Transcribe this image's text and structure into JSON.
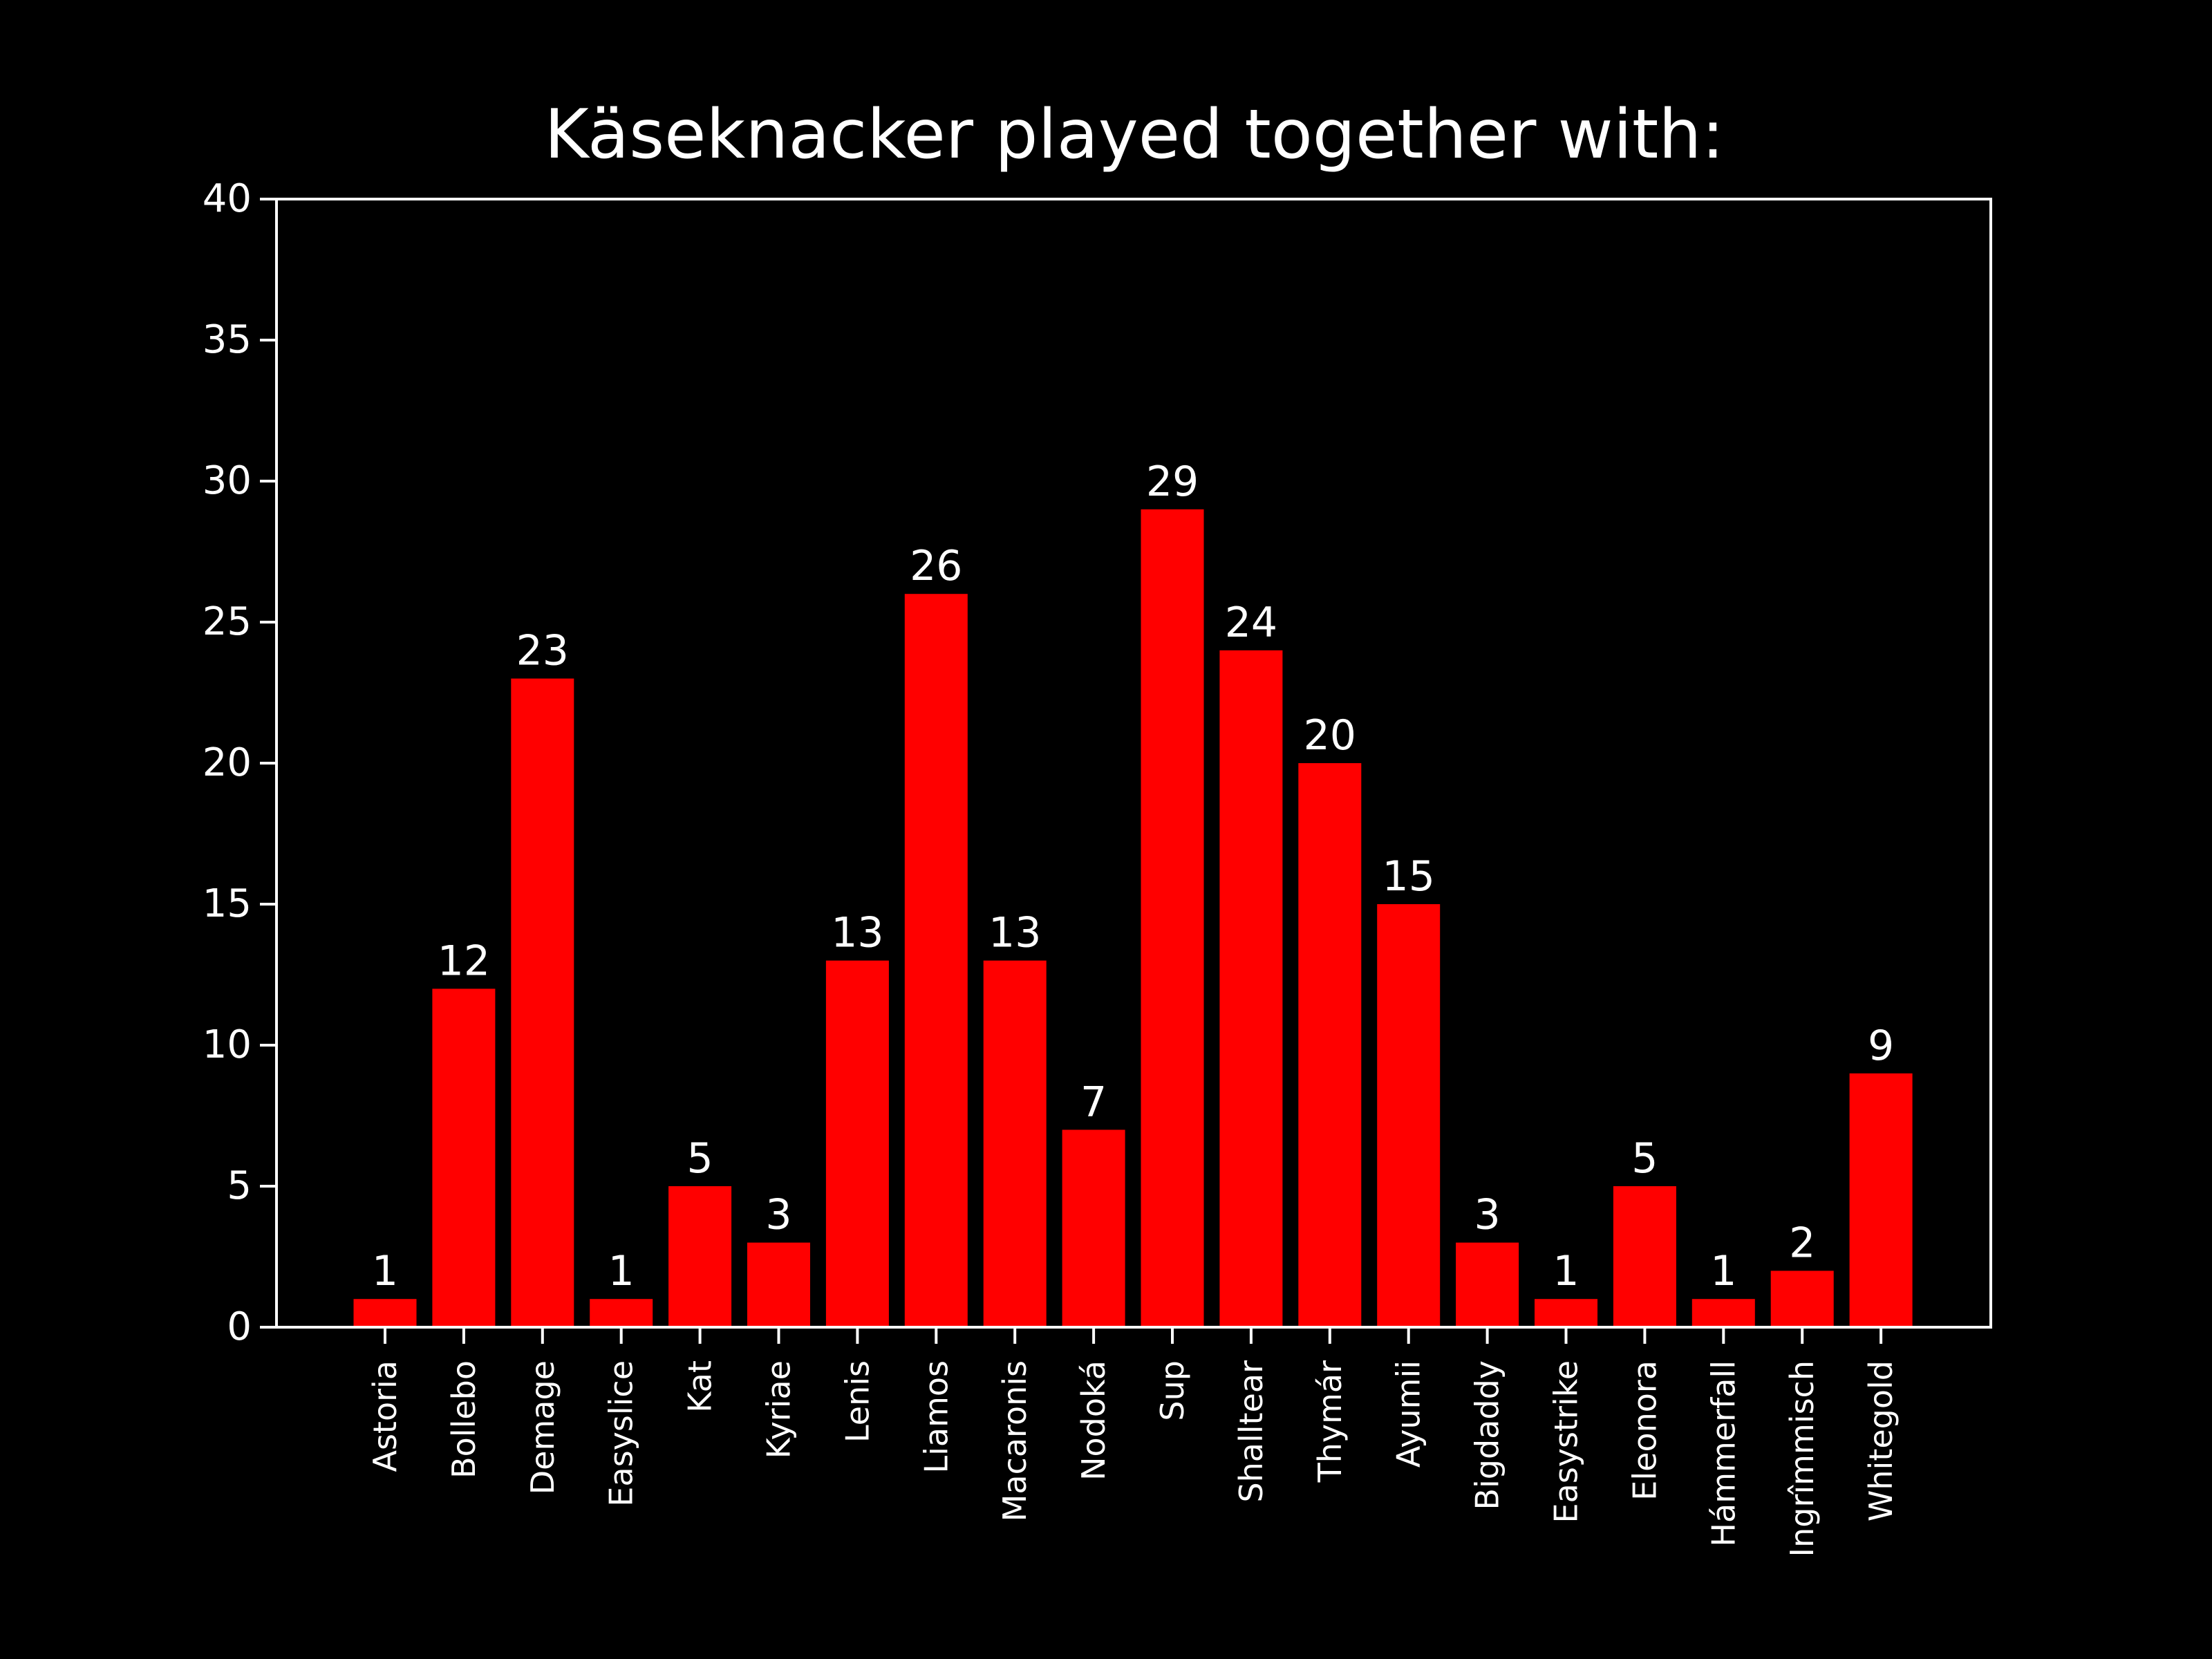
{
  "chart_data": {
    "type": "bar",
    "title": "Käseknacker played together with:",
    "xlabel": "",
    "ylabel": "",
    "categories": [
      "Astoria",
      "Bollebo",
      "Demage",
      "Easyslice",
      "Kat",
      "Kyriae",
      "Lenis",
      "Liamos",
      "Macaronis",
      "Nodoká",
      "Sup",
      "Shalltear",
      "Thymár",
      "Ayumii",
      "Bigdaddy",
      "Easystrike",
      "Eleonora",
      "Hámmerfall",
      "Ingrîmmisch",
      "Whitegold"
    ],
    "values": [
      1,
      12,
      23,
      1,
      5,
      3,
      13,
      26,
      13,
      7,
      29,
      24,
      20,
      15,
      3,
      1,
      5,
      1,
      2,
      9
    ],
    "value_labels": [
      "1",
      "12",
      "23",
      "1",
      "5",
      "3",
      "13",
      "26",
      "13",
      "7",
      "29",
      "24",
      "20",
      "15",
      "3",
      "1",
      "5",
      "1",
      "2",
      "9"
    ],
    "ylim": [
      0,
      40
    ],
    "yticks": [
      0,
      5,
      10,
      15,
      20,
      25,
      30,
      35,
      40
    ],
    "ytick_labels": [
      "0",
      "5",
      "10",
      "15",
      "20",
      "25",
      "30",
      "35",
      "40"
    ],
    "grid": false,
    "legend": "none",
    "bar_color": "#ff0000",
    "background_color": "#000000",
    "text_color": "#ffffff",
    "axis_color": "#ffffff"
  }
}
